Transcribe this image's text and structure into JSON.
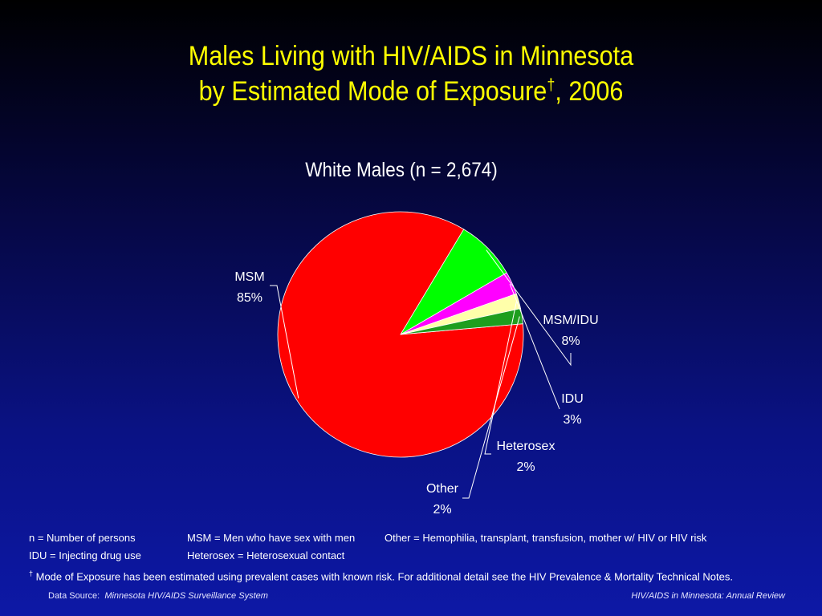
{
  "slide": {
    "title_line1": "Males Living with HIV/AIDS in Minnesota",
    "title_line2_pre": "by Estimated Mode of Exposure",
    "title_dagger": "†",
    "title_line2_post": ", 2006"
  },
  "chart_data": {
    "type": "pie",
    "title": "White Males (n = 2,674)",
    "slices": [
      {
        "label": "MSM",
        "value": 85,
        "value_label": "85%",
        "color": "#ff0000"
      },
      {
        "label": "MSM/IDU",
        "value": 8,
        "value_label": "8%",
        "color": "#00ff00"
      },
      {
        "label": "IDU",
        "value": 3,
        "value_label": "3%",
        "color": "#ff00ff"
      },
      {
        "label": "Heterosex",
        "value": 2,
        "value_label": "2%",
        "color": "#ffffaa"
      },
      {
        "label": "Other",
        "value": 2,
        "value_label": "2%",
        "color": "#1e9e1e"
      }
    ]
  },
  "notes": {
    "n_def": "n = Number of persons",
    "msm_def": "MSM = Men who have sex with men",
    "other_def": "Other = Hemophilia, transplant, transfusion, mother w/ HIV or HIV risk",
    "idu_def": "IDU = Injecting drug use",
    "hetero_def": "Heterosex = Heterosexual contact",
    "dagger": "†",
    "mode_note": " Mode of Exposure has been estimated using prevalent cases with known risk. For additional detail see the HIV Prevalence & Mortality Technical Notes."
  },
  "footer": {
    "source_label": "Data Source:",
    "source_name": "Minnesota HIV/AIDS Surveillance System",
    "right_text": "HIV/AIDS in Minnesota: Annual Review"
  }
}
